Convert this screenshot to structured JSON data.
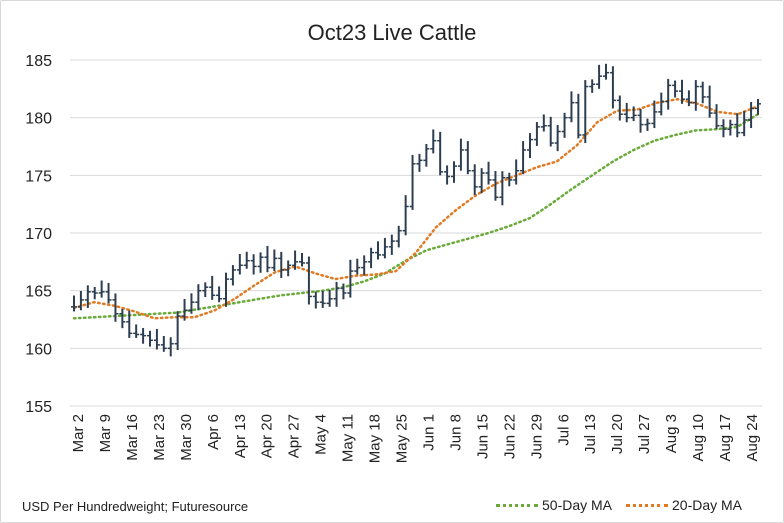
{
  "chart_data": {
    "type": "line",
    "title": "Oct23 Live Cattle",
    "note": "USD Per Hundredweight; Futuresource",
    "ylim": [
      155,
      185
    ],
    "yticks": [
      155,
      160,
      165,
      170,
      175,
      180,
      185
    ],
    "xtick_labels": [
      "Mar 2",
      "Mar 9",
      "Mar 16",
      "Mar 23",
      "Mar 30",
      "Apr 6",
      "Apr 13",
      "Apr 20",
      "Apr 27",
      "May 4",
      "May 11",
      "May 18",
      "May 25",
      "Jun 1",
      "Jun 8",
      "Jun 15",
      "Jun 22",
      "Jun 29",
      "Jul 6",
      "Jul 13",
      "Jul 20",
      "Jul 27",
      "Aug 3",
      "Aug 10",
      "Aug 17",
      "Aug 24"
    ],
    "grid": true,
    "colors": {
      "price": "#2d3e50",
      "ma50": "#6aaa3a",
      "ma20": "#e07b24",
      "grid": "#d9d9d9"
    },
    "ohlc_close": [
      163.6,
      164.2,
      164.9,
      164.8,
      164.9,
      164.2,
      163.0,
      162.3,
      161.3,
      161.2,
      161.1,
      160.7,
      160.3,
      160.0,
      160.4,
      162.8,
      163.3,
      164.0,
      165.0,
      165.3,
      164.6,
      164.3,
      166.0,
      166.8,
      167.2,
      167.6,
      167.1,
      167.9,
      167.0,
      167.8,
      166.8,
      167.2,
      167.5,
      167.4,
      164.5,
      164.0,
      163.9,
      164.3,
      165.2,
      164.8,
      166.7,
      167.0,
      167.5,
      168.3,
      168.1,
      168.8,
      169.3,
      170.2,
      172.3,
      176.0,
      176.3,
      177.3,
      178.0,
      175.3,
      174.9,
      175.8,
      177.2,
      175.4,
      174.0,
      175.2,
      174.6,
      173.1,
      174.8,
      174.6,
      175.4,
      177.2,
      178.1,
      179.2,
      179.3,
      177.8,
      178.8,
      180.0,
      181.3,
      178.5,
      182.7,
      182.9,
      183.6,
      183.9,
      181.5,
      180.3,
      180.0,
      180.2,
      179.4,
      179.5,
      180.5,
      181.4,
      182.8,
      182.3,
      181.6,
      181.3,
      182.7,
      181.8,
      180.4,
      179.3,
      179.0,
      179.4,
      178.7,
      179.8,
      180.8,
      181.2
    ],
    "series": [
      {
        "name": "50-Day MA",
        "values": [
          162.6,
          162.7,
          162.8,
          162.9,
          163.0,
          163.1,
          163.4,
          163.7,
          164.0,
          164.3,
          164.6,
          164.8,
          165.0,
          165.3,
          165.8,
          166.5,
          167.6,
          168.5,
          169.0,
          169.5,
          170.0,
          170.6,
          171.3,
          172.5,
          173.8,
          175.0,
          176.2,
          177.2,
          178.0,
          178.5,
          178.9,
          179.0,
          179.2,
          180.3
        ]
      },
      {
        "name": "20-Day MA",
        "values": [
          163.5,
          164.0,
          163.7,
          163.2,
          162.6,
          162.7,
          162.7,
          163.3,
          164.3,
          165.5,
          166.6,
          167.1,
          166.5,
          166.0,
          166.3,
          166.4,
          166.7,
          168.3,
          170.5,
          172.0,
          173.3,
          174.3,
          175.0,
          175.7,
          176.2,
          177.6,
          179.6,
          180.6,
          180.7,
          181.3,
          181.6,
          181.2,
          180.5,
          180.3,
          181.0
        ]
      }
    ],
    "legend": [
      "50-Day MA",
      "20-Day MA"
    ]
  }
}
